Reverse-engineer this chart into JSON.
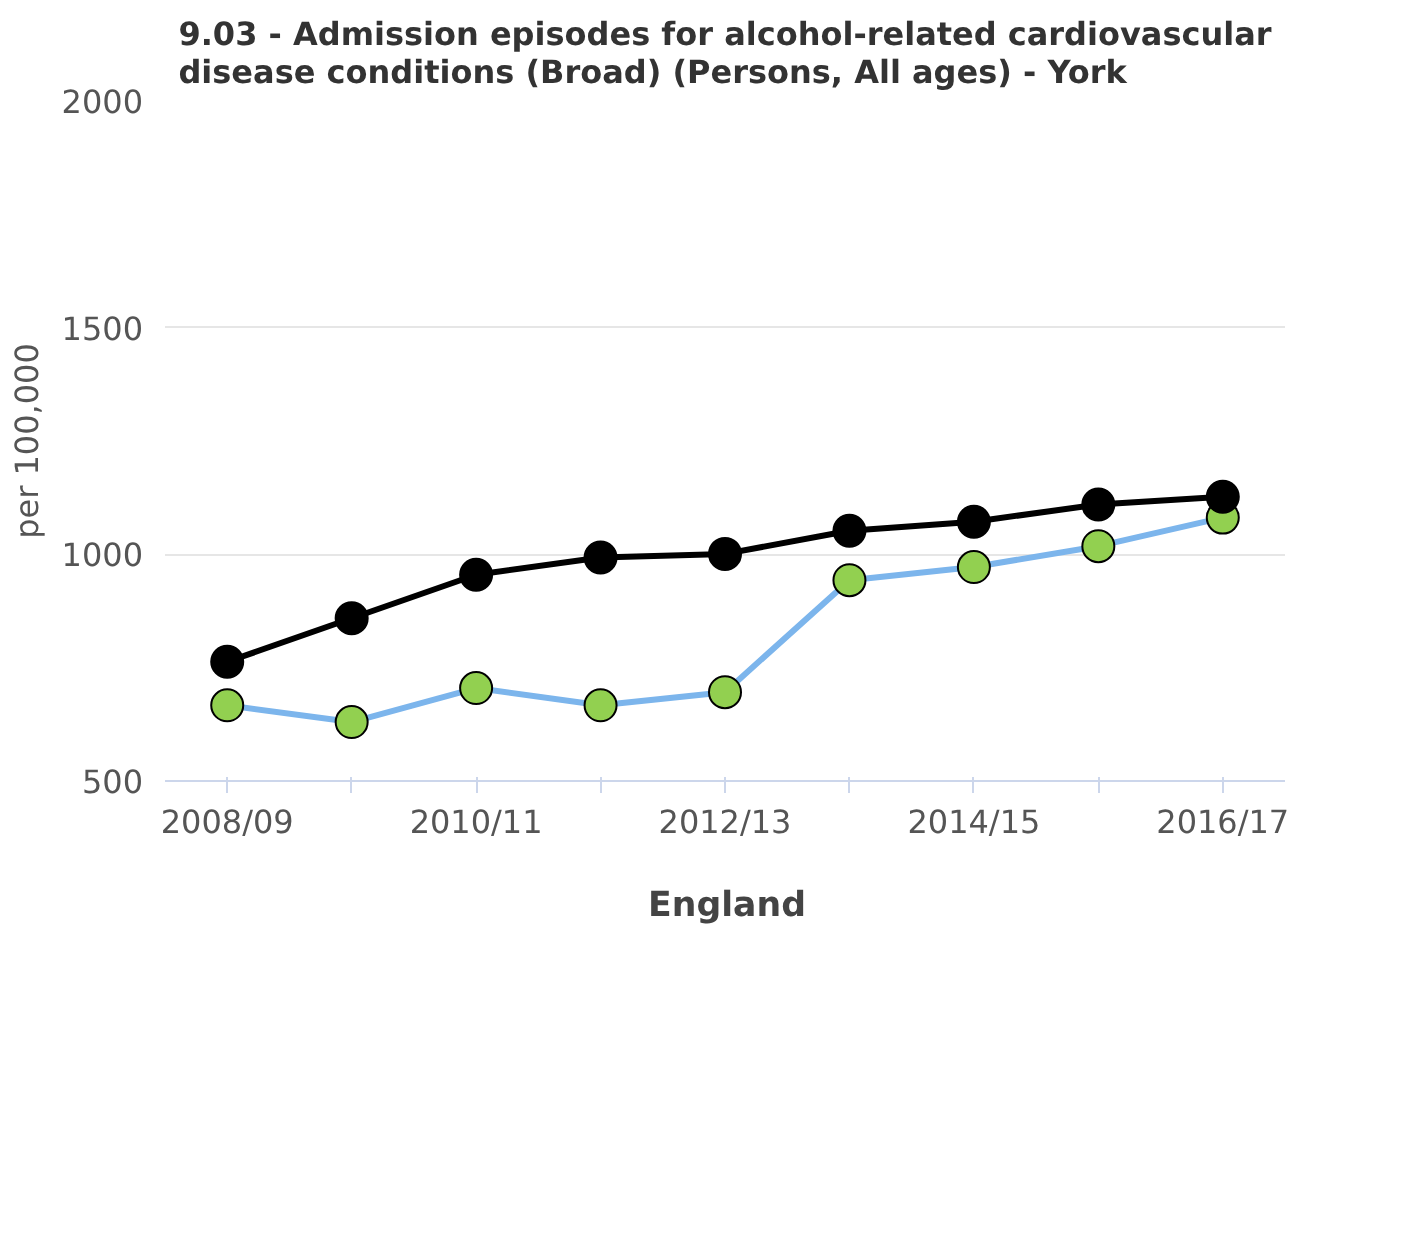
{
  "chart_data": {
    "type": "line",
    "title": "9.03 - Admission episodes for alcohol-related cardiovascular disease conditions (Broad) (Persons, All ages) - York",
    "ylabel": "per 100,000",
    "categories": [
      "2008/09",
      null,
      "2010/11",
      null,
      "2012/13",
      null,
      "2014/15",
      null,
      "2016/17"
    ],
    "series": [
      {
        "color": "#7cb5ec",
        "colors": [
          "#92d050",
          "#92d050",
          "#92d050",
          "#92d050",
          "#92d050",
          "#92d050",
          "#92d050",
          "#92d050",
          "#92d050"
        ],
        "values": [
          667,
          630,
          705,
          667,
          696,
          943,
          972,
          1018,
          1081
        ]
      },
      {
        "name": "England",
        "color": "#000000",
        "values": [
          763,
          859,
          955,
          993,
          1001,
          1052,
          1072,
          1110,
          1127
        ]
      }
    ],
    "ylim": [
      500,
      2000
    ],
    "yticks": [
      500,
      1000,
      1500,
      2000
    ],
    "grid": "y",
    "legend": "bottom",
    "marker": "circle",
    "line_style": "solid"
  }
}
